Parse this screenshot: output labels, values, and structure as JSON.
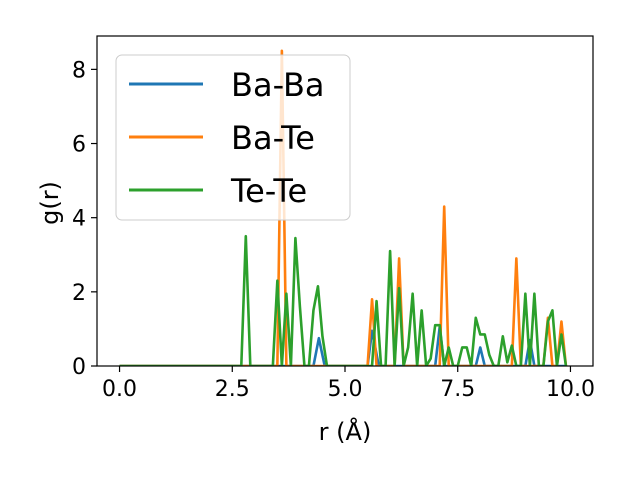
{
  "chart_data": {
    "type": "line",
    "xlabel": "r (Å)",
    "ylabel": "g(r)",
    "xlim": [
      -0.5,
      10.5
    ],
    "ylim": [
      0,
      8.9
    ],
    "xticks": [
      "0.0",
      "2.5",
      "5.0",
      "7.5",
      "10.0"
    ],
    "yticks": [
      "0",
      "2",
      "4",
      "6",
      "8"
    ],
    "grid": false,
    "legend_position": "top-left",
    "series": [
      {
        "name": "Ba-Ba",
        "color": "#1f77b4",
        "x": [
          0.0,
          4.3,
          4.42,
          4.55,
          5.5,
          5.6,
          5.75,
          7.0,
          7.1,
          7.2,
          7.9,
          8.0,
          8.1,
          9.0,
          9.1,
          9.2,
          9.9
        ],
        "y": [
          0,
          0,
          0.75,
          0,
          0,
          0.95,
          0,
          0,
          1.05,
          0,
          0,
          0.5,
          0,
          0,
          0.7,
          0,
          0
        ]
      },
      {
        "name": "Ba-Te",
        "color": "#ff7f0e",
        "x": [
          0.0,
          3.5,
          3.6,
          3.7,
          5.5,
          5.6,
          5.7,
          6.1,
          6.2,
          6.3,
          7.1,
          7.2,
          7.3,
          8.7,
          8.8,
          8.9,
          9.4,
          9.5,
          9.6,
          9.7,
          9.8,
          9.9
        ],
        "y": [
          0,
          0,
          8.5,
          0,
          0,
          1.8,
          0,
          0,
          2.9,
          0,
          0,
          4.3,
          0,
          0,
          2.9,
          0,
          0,
          1.3,
          0,
          0,
          1.2,
          0
        ]
      },
      {
        "name": "Te-Te",
        "color": "#2ca02c",
        "x": [
          0.0,
          2.7,
          2.8,
          2.9,
          3.4,
          3.5,
          3.6,
          3.7,
          3.8,
          3.9,
          4.0,
          4.1,
          4.2,
          4.3,
          4.4,
          4.5,
          4.6,
          5.6,
          5.7,
          5.8,
          5.9,
          6.0,
          6.1,
          6.2,
          6.3,
          6.4,
          6.5,
          6.6,
          6.7,
          6.8,
          6.9,
          7.0,
          7.1,
          7.2,
          7.3,
          7.4,
          7.5,
          7.6,
          7.7,
          7.8,
          7.9,
          8.0,
          8.1,
          8.2,
          8.3,
          8.4,
          8.5,
          8.6,
          8.7,
          8.8,
          8.9,
          9.0,
          9.1,
          9.2,
          9.3,
          9.4,
          9.5,
          9.6,
          9.7,
          9.8,
          9.9
        ],
        "y": [
          0,
          0,
          3.5,
          0,
          0,
          2.3,
          0,
          1.95,
          0,
          3.45,
          1.6,
          0,
          0,
          1.5,
          2.15,
          0.8,
          0,
          0,
          1.75,
          0,
          0,
          3.1,
          0,
          2.1,
          0,
          0.5,
          1.95,
          0,
          1.5,
          0,
          0.2,
          1.1,
          1.1,
          0,
          0.5,
          0,
          0,
          0.5,
          0.5,
          0,
          1.3,
          0.85,
          0.85,
          0.3,
          0,
          0,
          0.8,
          0.1,
          0.55,
          0,
          0,
          1.95,
          0,
          1.95,
          0,
          0,
          1.2,
          1.5,
          0,
          0.85,
          0
        ]
      }
    ]
  }
}
